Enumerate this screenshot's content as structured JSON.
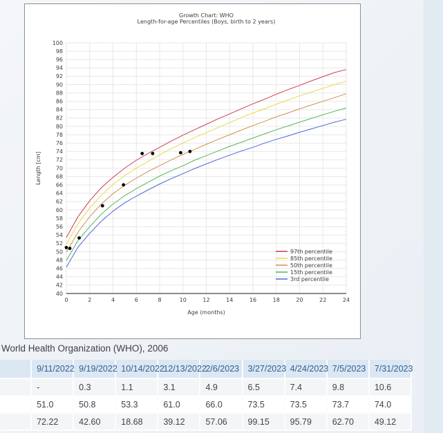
{
  "caption": {
    "text": "World Health Organization (WHO), 2006"
  },
  "chart_data": {
    "type": "line",
    "title": "Growth Chart: WHO",
    "subtitle": "Length-for-age Percentiles (Boys, birth to 2 years)",
    "xlabel": "Age (months)",
    "ylabel": "Length [cm]",
    "xlim": [
      0,
      24
    ],
    "ylim": [
      40,
      100
    ],
    "x_ticks": [
      0,
      2,
      4,
      6,
      8,
      10,
      12,
      14,
      16,
      18,
      20,
      22,
      24
    ],
    "y_ticks": [
      40,
      42,
      44,
      46,
      48,
      50,
      52,
      54,
      56,
      58,
      60,
      62,
      64,
      66,
      68,
      70,
      72,
      74,
      76,
      78,
      80,
      82,
      84,
      86,
      88,
      90,
      92,
      94,
      96,
      98,
      100
    ],
    "grid": true,
    "legend_position": "lower right",
    "x": [
      0,
      1,
      2,
      3,
      4,
      5,
      6,
      7,
      8,
      9,
      10,
      11,
      12,
      13,
      14,
      15,
      16,
      17,
      18,
      19,
      20,
      21,
      22,
      23,
      24
    ],
    "series": [
      {
        "name": "97th percentile",
        "color": "#cc3d4e",
        "values": [
          53.4,
          58.4,
          62.2,
          65.3,
          67.8,
          70.0,
          71.9,
          73.5,
          75.0,
          76.5,
          77.9,
          79.2,
          80.5,
          81.8,
          83.0,
          84.2,
          85.4,
          86.5,
          87.7,
          88.8,
          89.8,
          90.9,
          91.9,
          92.9,
          93.6
        ]
      },
      {
        "name": "85th percentile",
        "color": "#e8d84a",
        "values": [
          51.8,
          56.7,
          60.5,
          63.5,
          66.1,
          68.2,
          70.0,
          71.6,
          73.2,
          74.7,
          76.0,
          77.3,
          78.5,
          79.7,
          80.9,
          82.1,
          83.2,
          84.2,
          85.3,
          86.3,
          87.3,
          88.2,
          89.1,
          90.0,
          90.8
        ]
      },
      {
        "name": "50th percentile",
        "color": "#d0904a",
        "values": [
          49.9,
          54.7,
          58.4,
          61.4,
          63.9,
          65.9,
          67.6,
          69.2,
          70.6,
          72.0,
          73.3,
          74.5,
          75.7,
          76.9,
          78.0,
          79.1,
          80.2,
          81.2,
          82.3,
          83.2,
          84.2,
          85.1,
          86.0,
          86.9,
          87.8
        ]
      },
      {
        "name": "15th percentile",
        "color": "#57b45a",
        "values": [
          47.9,
          52.7,
          56.0,
          59.0,
          61.4,
          63.4,
          65.1,
          66.6,
          68.1,
          69.4,
          70.6,
          71.9,
          73.0,
          74.1,
          75.2,
          76.2,
          77.2,
          78.2,
          79.2,
          80.1,
          81.0,
          81.9,
          82.8,
          83.6,
          84.4
        ]
      },
      {
        "name": "3rd percentile",
        "color": "#4a66d6",
        "values": [
          46.3,
          51.1,
          54.4,
          57.3,
          59.7,
          61.7,
          63.3,
          64.8,
          66.2,
          67.5,
          68.7,
          69.9,
          71.0,
          72.1,
          73.1,
          74.1,
          75.0,
          76.0,
          76.9,
          77.7,
          78.6,
          79.4,
          80.2,
          81.0,
          81.7
        ]
      }
    ],
    "points": {
      "name": "patient-measurements",
      "color": "#000000",
      "x": [
        0,
        0.3,
        1.1,
        3.1,
        4.9,
        6.5,
        7.4,
        9.8,
        10.6
      ],
      "y": [
        51.0,
        50.8,
        53.3,
        61.0,
        66.0,
        73.5,
        73.5,
        73.7,
        74.0
      ]
    }
  },
  "table": {
    "headers": [
      "",
      "9/11/2022",
      "9/19/2022",
      "10/14/2022",
      "12/13/2022",
      "2/6/2023",
      "3/27/2023",
      "4/24/2023",
      "7/5/2023",
      "7/31/2023"
    ],
    "rows": [
      [
        "",
        "-",
        "0.3",
        "1.1",
        "3.1",
        "4.9",
        "6.5",
        "7.4",
        "9.8",
        "10.6"
      ],
      [
        "",
        "51.0",
        "50.8",
        "53.3",
        "61.0",
        "66.0",
        "73.5",
        "73.5",
        "73.7",
        "74.0"
      ],
      [
        "",
        "72.22",
        "42.60",
        "18.68",
        "39.12",
        "57.06",
        "99.15",
        "95.79",
        "62.70",
        "49.12"
      ]
    ]
  },
  "colors": {
    "grid": "#e7e7e7",
    "axis_line": "#444444",
    "tick_text": "#3c3c3c",
    "title_text": "#3c3c3c",
    "header_bg": "#dbe7f3",
    "header_text": "#33608e"
  }
}
